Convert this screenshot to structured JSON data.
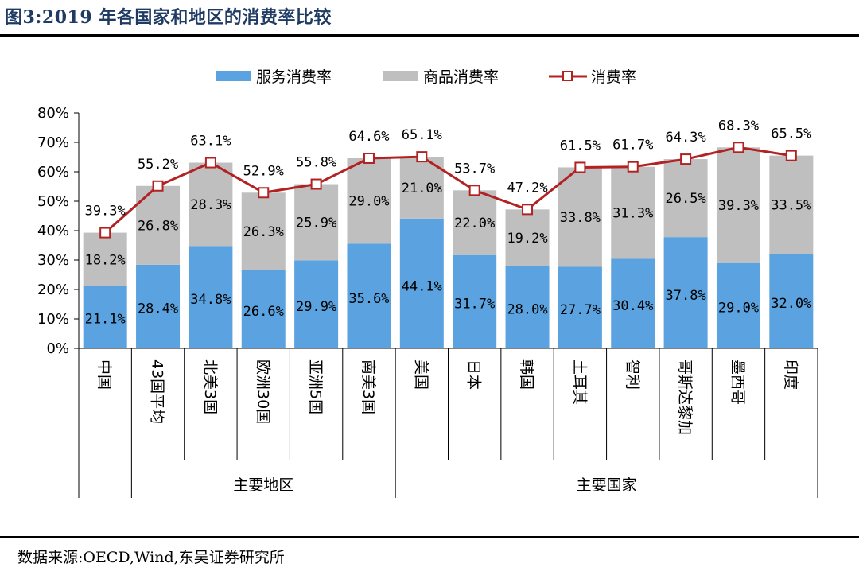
{
  "title": "图3:2019 年各国家和地区的消费率比较",
  "source": "数据来源:OECD,Wind,东吴证券研究所",
  "colors": {
    "services": "#5ba3e0",
    "goods": "#bfbfbf",
    "total": "#b22222",
    "title": "#1f3b63"
  },
  "chart_data": {
    "type": "bar",
    "stacked": true,
    "categories": [
      "中国",
      "43国平均",
      "北美3国",
      "欧洲30国",
      "亚洲5国",
      "南美3国",
      "美国",
      "日本",
      "韩国",
      "土耳其",
      "智利",
      "哥斯达黎加",
      "墨西哥",
      "印度"
    ],
    "groups": [
      {
        "label": "主要地区",
        "from": 1,
        "to": 5
      },
      {
        "label": "主要国家",
        "from": 6,
        "to": 13
      }
    ],
    "series": [
      {
        "name": "服务消费率",
        "kind": "bar",
        "values": [
          21.1,
          28.4,
          34.8,
          26.6,
          29.9,
          35.6,
          44.1,
          31.7,
          28.0,
          27.7,
          30.4,
          37.8,
          29.0,
          32.0
        ],
        "labels": [
          "21.1%",
          "28.4%",
          "34.8%",
          "26.6%",
          "29.9%",
          "35.6%",
          "44.1%",
          "31.7%",
          "28.0%",
          "27.7%",
          "30.4%",
          "37.8%",
          "29.0%",
          "32.0%"
        ]
      },
      {
        "name": "商品消费率",
        "kind": "bar",
        "values": [
          18.2,
          26.8,
          28.3,
          26.3,
          25.9,
          29.0,
          21.0,
          22.0,
          19.2,
          33.8,
          31.3,
          26.5,
          39.3,
          33.5
        ],
        "labels": [
          "18.2%",
          "26.8%",
          "28.3%",
          "26.3%",
          "25.9%",
          "29.0%",
          "21.0%",
          "22.0%",
          "19.2%",
          "33.8%",
          "31.3%",
          "26.5%",
          "39.3%",
          "33.5%"
        ]
      },
      {
        "name": "消费率",
        "kind": "line",
        "values": [
          39.3,
          55.2,
          63.1,
          52.9,
          55.8,
          64.6,
          65.1,
          53.7,
          47.2,
          61.5,
          61.7,
          64.3,
          68.3,
          65.5
        ],
        "labels": [
          "39.3%",
          "55.2%",
          "63.1%",
          "52.9%",
          "55.8%",
          "64.6%",
          "65.1%",
          "53.7%",
          "47.2%",
          "61.5%",
          "61.7%",
          "64.3%",
          "68.3%",
          "65.5%"
        ]
      }
    ],
    "ylim": [
      0,
      80
    ],
    "yticks": [
      "0%",
      "10%",
      "20%",
      "30%",
      "40%",
      "50%",
      "60%",
      "70%",
      "80%"
    ],
    "grid": false,
    "legend": "top"
  }
}
